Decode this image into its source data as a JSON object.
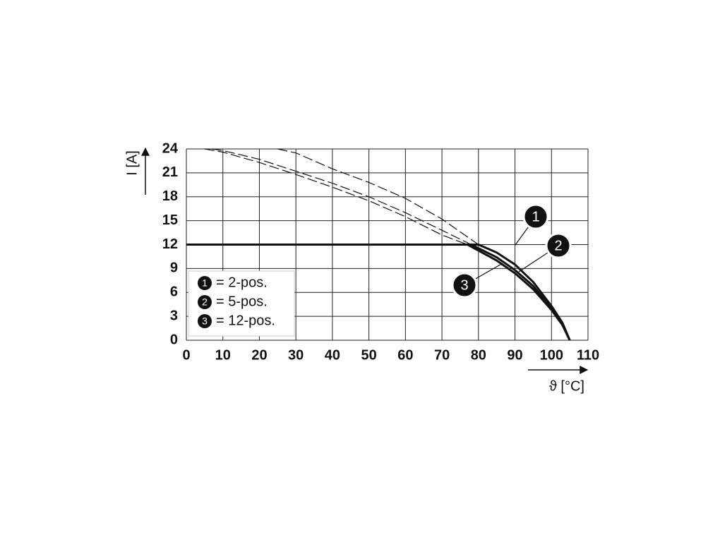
{
  "chart_data": {
    "type": "line",
    "x_label": "ϑ [°C]",
    "y_label": "I [A]",
    "xlim": [
      0,
      110
    ],
    "ylim": [
      0,
      24
    ],
    "xticks": [
      0,
      10,
      20,
      30,
      40,
      50,
      60,
      70,
      80,
      90,
      100,
      110
    ],
    "yticks": [
      0,
      3,
      6,
      9,
      12,
      15,
      18,
      21,
      24
    ],
    "grid": true,
    "series": [
      {
        "label": "1",
        "name": "= 2-pos.",
        "color": "#111111",
        "x": [
          0,
          80,
          85,
          90,
          95,
          100,
          103,
          105
        ],
        "values": [
          12,
          12,
          11,
          9.5,
          7.3,
          4.3,
          2.2,
          0
        ],
        "dashed_x": [
          25,
          30,
          40,
          50,
          60,
          70,
          80
        ],
        "dashed_values": [
          24,
          23.5,
          21.5,
          19.8,
          17.8,
          15.2,
          12
        ]
      },
      {
        "label": "2",
        "name": "= 5-pos.",
        "color": "#111111",
        "x": [
          0,
          78,
          85,
          90,
          95,
          100,
          103,
          105
        ],
        "values": [
          12,
          12,
          10.4,
          8.8,
          6.8,
          4,
          2,
          0
        ],
        "dashed_x": [
          7,
          10,
          20,
          30,
          40,
          50,
          60,
          70,
          78
        ],
        "dashed_values": [
          24,
          23.8,
          22.7,
          21.2,
          19.7,
          18,
          16,
          13.8,
          12
        ]
      },
      {
        "label": "3",
        "name": "= 12-pos.",
        "color": "#111111",
        "x": [
          0,
          77,
          85,
          90,
          95,
          100,
          103,
          105
        ],
        "values": [
          12,
          12,
          10,
          8.4,
          6.4,
          3.8,
          1.9,
          0
        ],
        "dashed_x": [
          5,
          10,
          20,
          30,
          40,
          50,
          60,
          70,
          77
        ],
        "dashed_values": [
          24,
          23.6,
          22.3,
          20.8,
          19.2,
          17.5,
          15.5,
          13.2,
          12
        ]
      }
    ]
  }
}
